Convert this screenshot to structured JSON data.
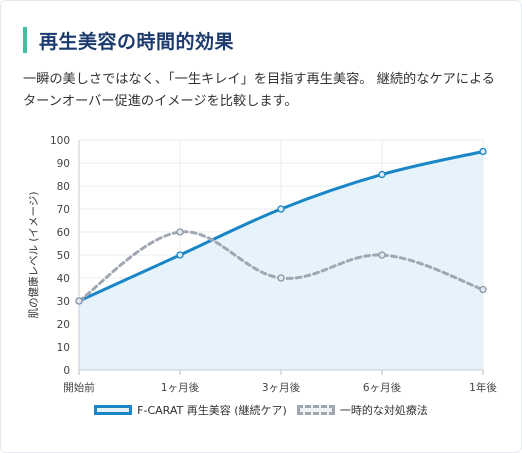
{
  "heading": "再生美容の時間的効果",
  "description": "一瞬の美しさではなく、「一生キレイ」を目指す再生美容。 継続的なケアによるターンオーバー促進のイメージを比較します。",
  "colors": {
    "accent_bar": "#3cc0a0",
    "series_main": "#1a86c6",
    "series_alt": "#9fa7b2",
    "fill_main": "#e3f1f9"
  },
  "chart_data": {
    "type": "line",
    "title": "",
    "xlabel": "",
    "ylabel": "肌の健康レベル (イメージ)",
    "categories": [
      "開始前",
      "1ヶ月後",
      "3ヶ月後",
      "6ヶ月後",
      "1年後"
    ],
    "ylim": [
      0,
      100
    ],
    "yticks": [
      0,
      10,
      20,
      30,
      40,
      50,
      60,
      70,
      80,
      90,
      100
    ],
    "grid": true,
    "legend": "bottom",
    "series": [
      {
        "name": "F-CARAT 再生美容 (継続ケア)",
        "values": [
          30,
          50,
          70,
          85,
          95
        ],
        "style": "solid",
        "filled": true
      },
      {
        "name": "一時的な対処療法",
        "values": [
          30,
          60,
          40,
          50,
          35
        ],
        "style": "dashed",
        "filled": false
      }
    ]
  }
}
